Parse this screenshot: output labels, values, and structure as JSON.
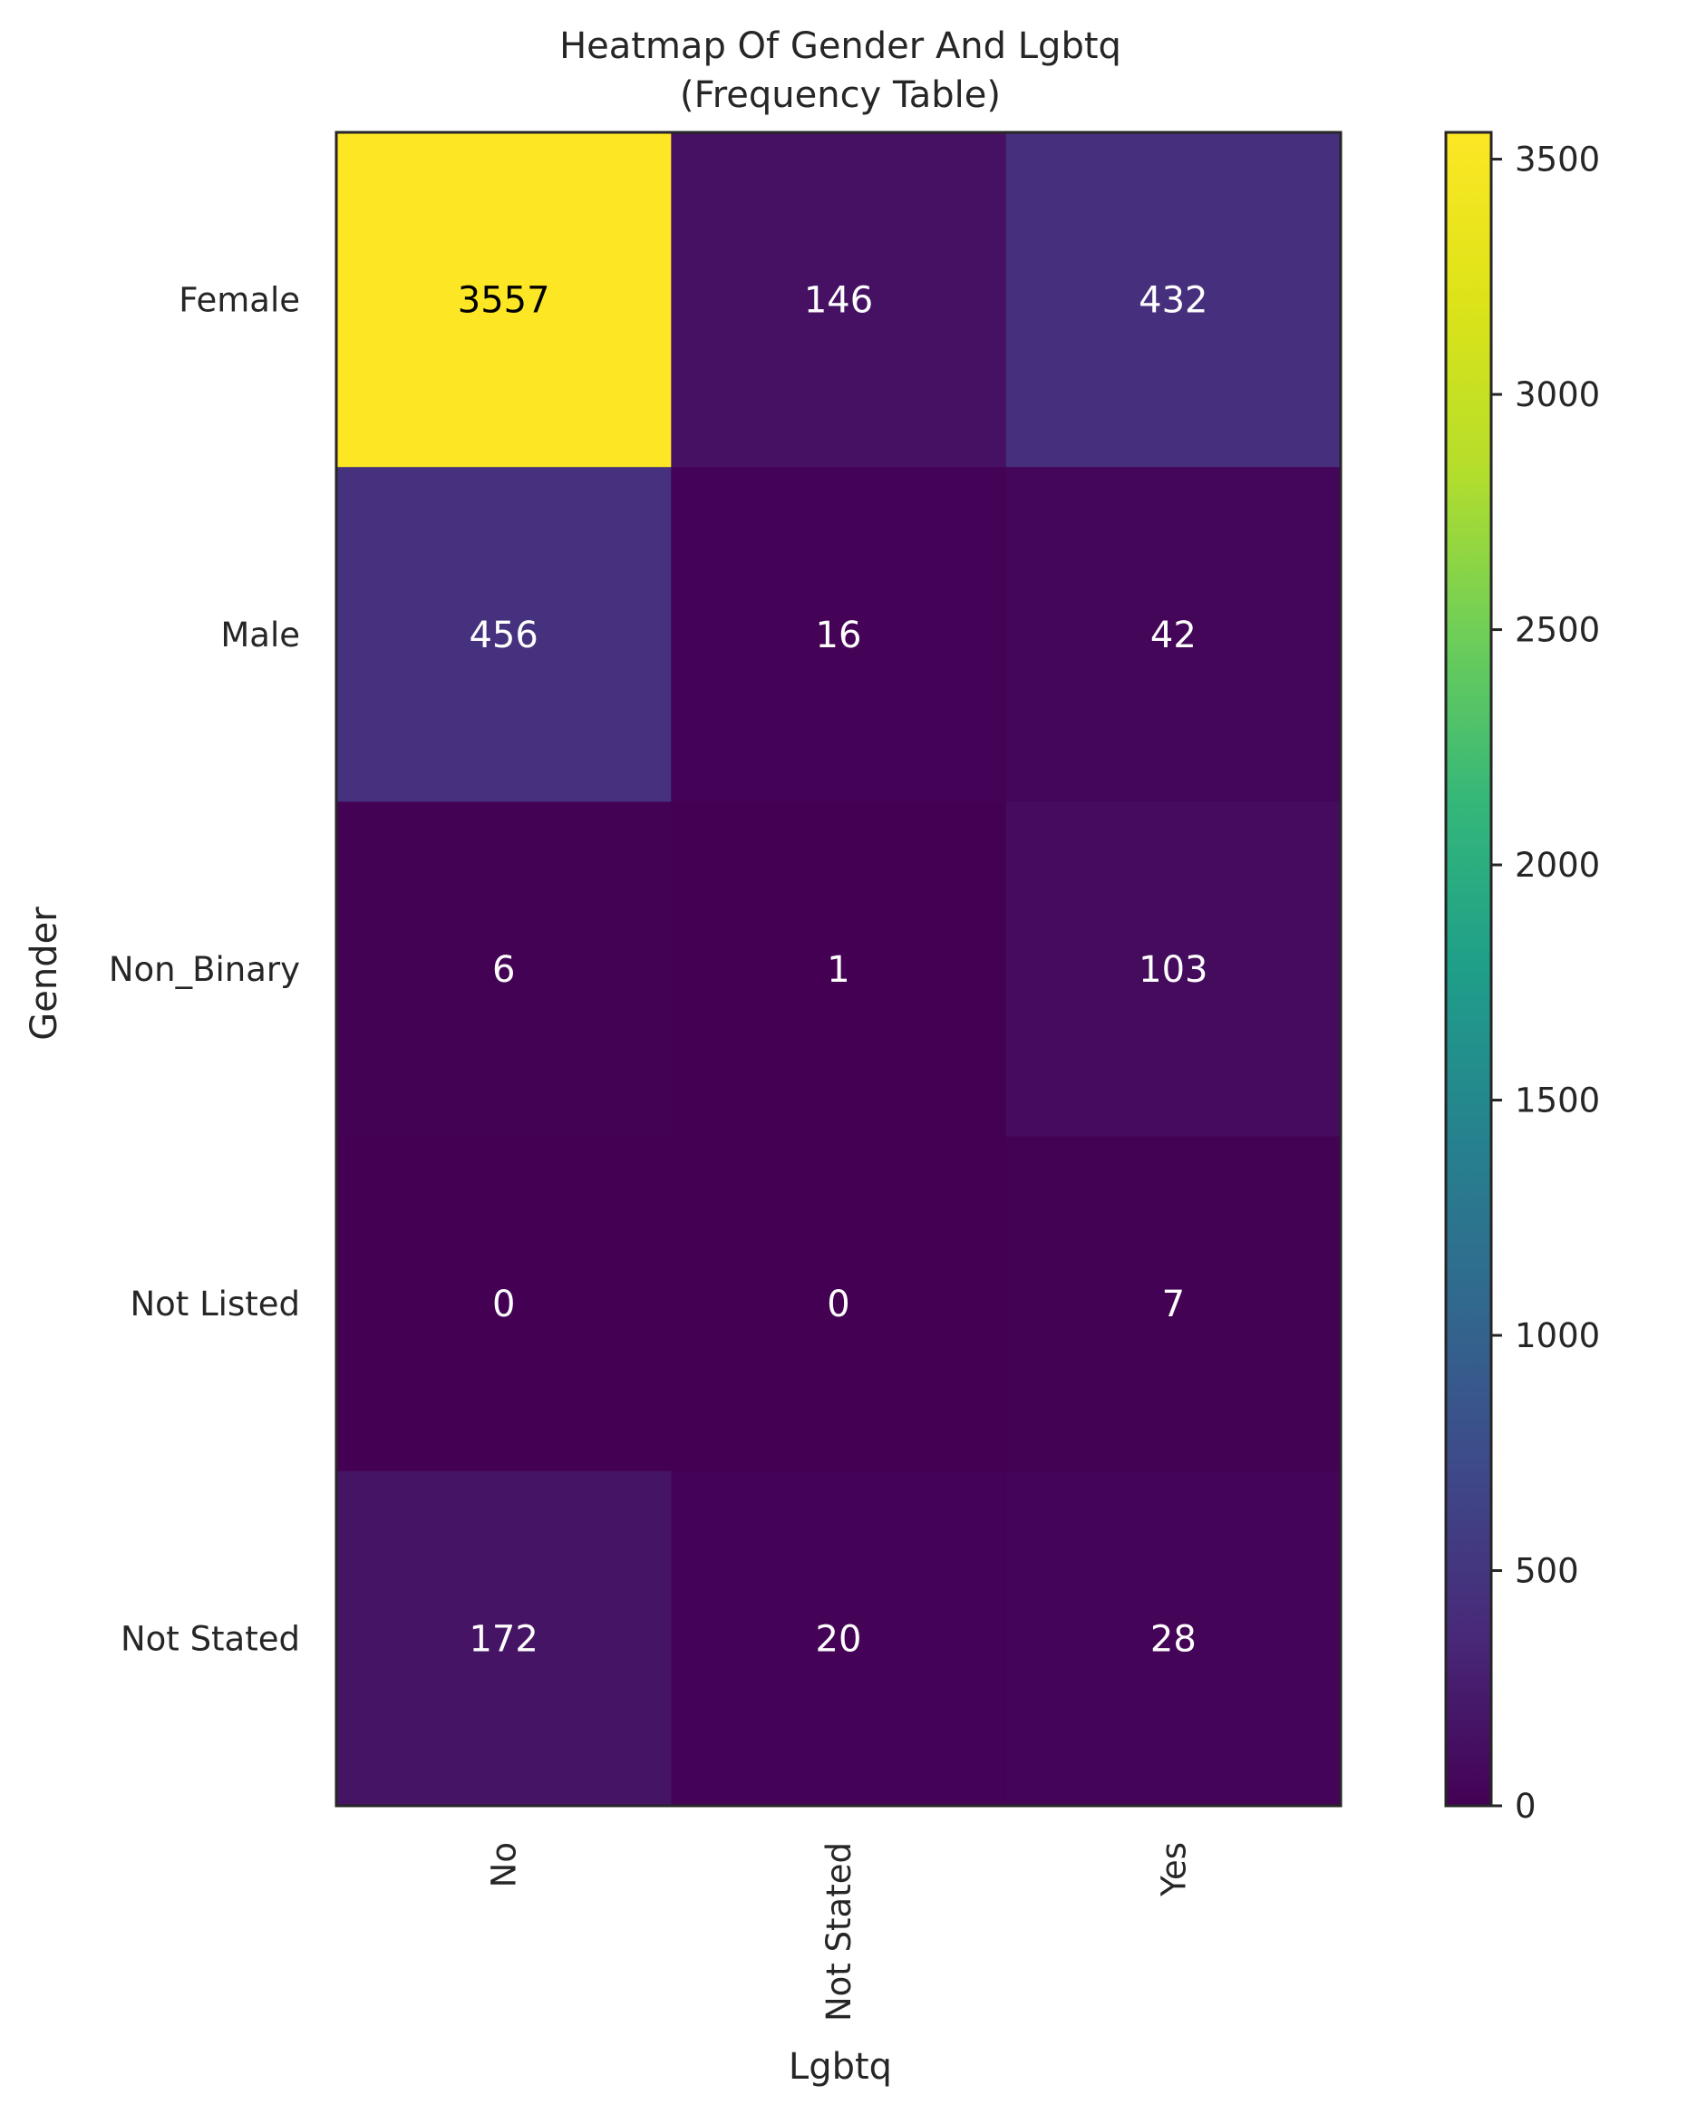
{
  "chart_data": {
    "type": "heatmap",
    "title": "Heatmap Of Gender And Lgbtq",
    "subtitle": "(Frequency Table)",
    "xlabel": "Lgbtq",
    "ylabel": "Gender",
    "x_categories": [
      "No",
      "Not Stated",
      "Yes"
    ],
    "y_categories": [
      "Female",
      "Male",
      "Non_Binary",
      "Not Listed",
      "Not Stated"
    ],
    "values": [
      [
        3557,
        146,
        432
      ],
      [
        456,
        16,
        42
      ],
      [
        6,
        1,
        103
      ],
      [
        0,
        0,
        7
      ],
      [
        172,
        20,
        28
      ]
    ],
    "colormap": "viridis",
    "colorbar": {
      "min": 0,
      "max": 3557,
      "ticks": [
        0,
        500,
        1000,
        1500,
        2000,
        2500,
        3000,
        3500
      ]
    },
    "grid": false
  }
}
